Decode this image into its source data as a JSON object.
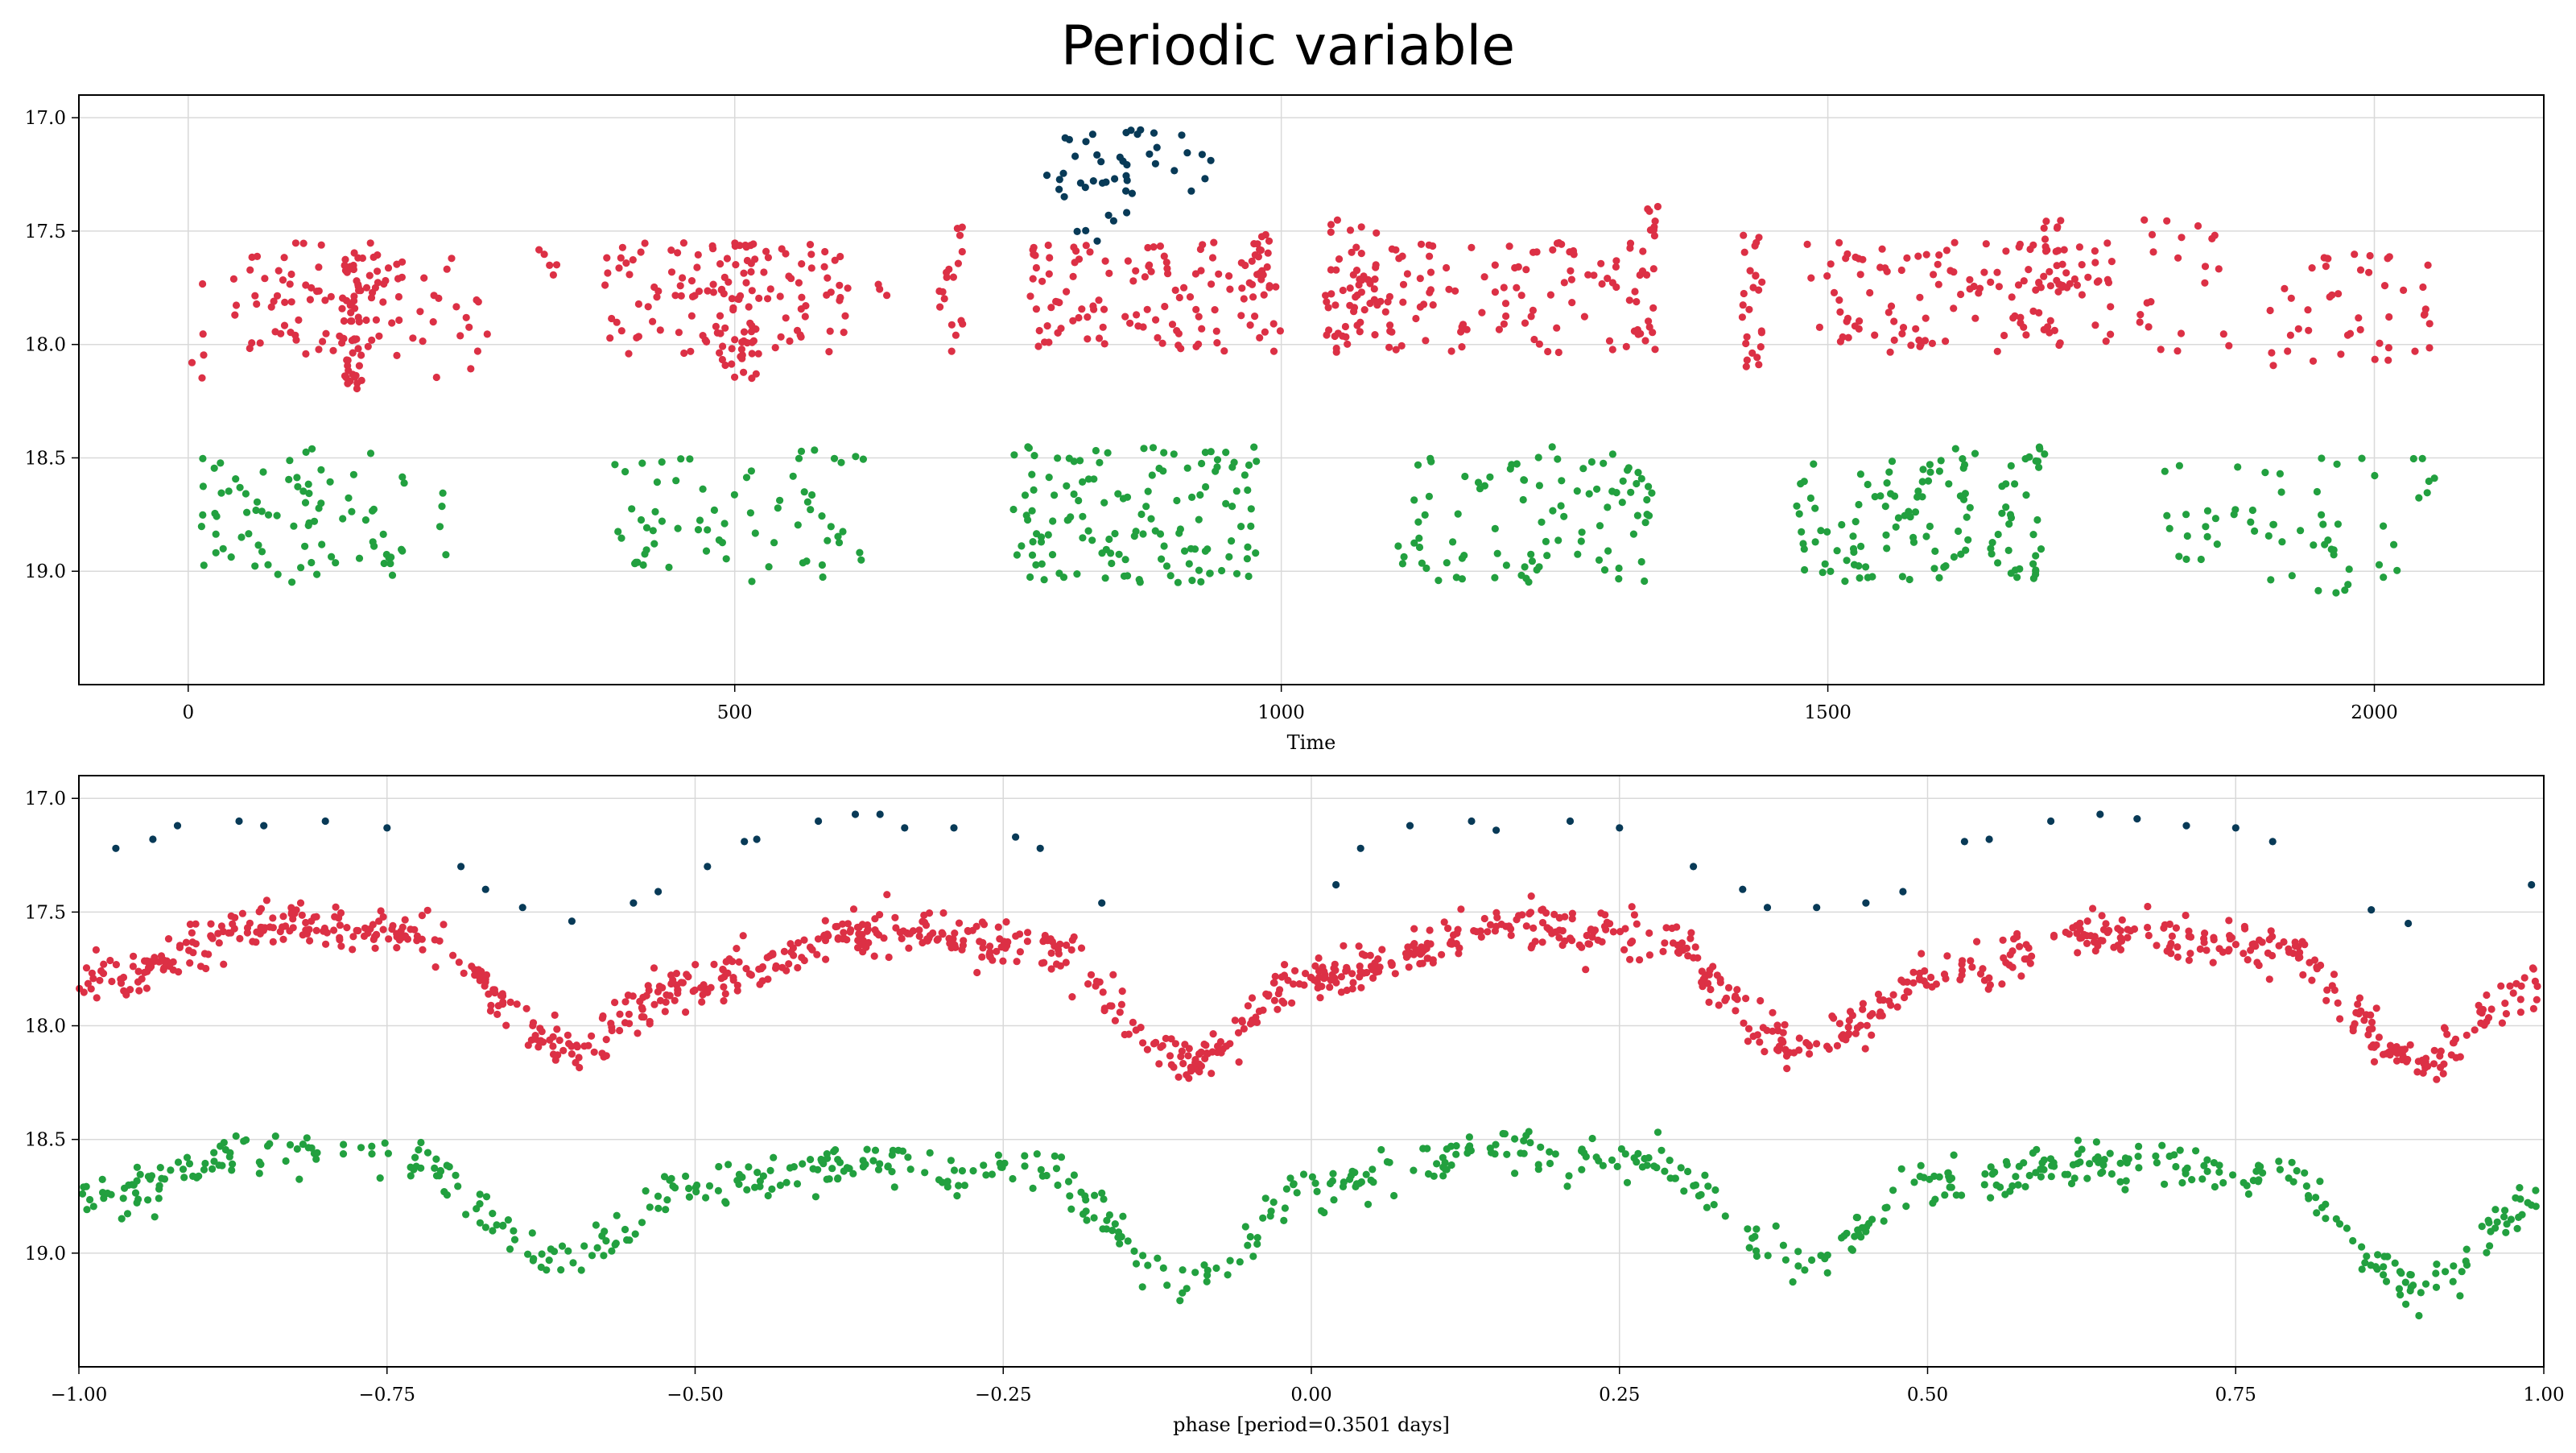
{
  "title": "Periodic variable",
  "colors": {
    "g": "#22a03f",
    "r": "#dc3045",
    "i": "#083a57",
    "grid": "#d9d9d9"
  },
  "chart_data": [
    {
      "type": "scatter",
      "xlabel": "Time",
      "ylabel": "",
      "xlim": [
        -100,
        2155
      ],
      "ylim": [
        19.5,
        16.9
      ],
      "y_inverted": true,
      "grid": true,
      "xticks": [
        0,
        500,
        1000,
        1500,
        2000
      ],
      "yticks": [
        17.0,
        17.5,
        18.0,
        18.5,
        19.0
      ],
      "series": [
        {
          "color_key": "r",
          "clusters": [
            [
              0,
              20,
              17.85,
              0.3,
              5
            ],
            [
              40,
              230,
              17.8,
              0.25,
              90
            ],
            [
              140,
              160,
              17.9,
              0.3,
              45
            ],
            [
              225,
              275,
              17.85,
              0.3,
              12
            ],
            [
              320,
              340,
              17.65,
              0.1,
              5
            ],
            [
              380,
              605,
              17.8,
              0.25,
              110
            ],
            [
              480,
              520,
              17.85,
              0.3,
              45
            ],
            [
              630,
              640,
              17.7,
              0.1,
              3
            ],
            [
              685,
              710,
              17.75,
              0.3,
              18
            ],
            [
              770,
              1000,
              17.8,
              0.25,
              120
            ],
            [
              970,
              990,
              17.65,
              0.15,
              15
            ],
            [
              1040,
              1090,
              17.75,
              0.3,
              55
            ],
            [
              1090,
              1350,
              17.8,
              0.25,
              110
            ],
            [
              1335,
              1350,
              17.5,
              0.15,
              8
            ],
            [
              1420,
              1440,
              17.8,
              0.3,
              25
            ],
            [
              1480,
              1760,
              17.8,
              0.25,
              125
            ],
            [
              1690,
              1720,
              17.6,
              0.15,
              20
            ],
            [
              1780,
              1870,
              17.75,
              0.3,
              22
            ],
            [
              1900,
              2055,
              17.85,
              0.25,
              45
            ]
          ]
        },
        {
          "color_key": "g",
          "clusters": [
            [
              10,
              200,
              18.75,
              0.3,
              80
            ],
            [
              230,
              240,
              18.75,
              0.2,
              4
            ],
            [
              390,
              620,
              18.75,
              0.3,
              70
            ],
            [
              755,
              980,
              18.75,
              0.3,
              135
            ],
            [
              1105,
              1340,
              18.75,
              0.3,
              95
            ],
            [
              1470,
              1700,
              18.75,
              0.3,
              125
            ],
            [
              1805,
              2055,
              18.8,
              0.3,
              60
            ]
          ]
        },
        {
          "color_key": "i",
          "clusters": [
            [
              770,
              940,
              17.2,
              0.15,
              40
            ],
            [
              790,
              860,
              17.45,
              0.1,
              6
            ]
          ]
        }
      ]
    },
    {
      "type": "scatter",
      "xlabel": "phase [period=0.3501 days]",
      "ylabel": "",
      "xlim": [
        -1.0,
        1.0
      ],
      "ylim": [
        19.5,
        16.9
      ],
      "y_inverted": true,
      "grid": true,
      "xticks": [
        -1.0,
        -0.75,
        -0.5,
        -0.25,
        0.0,
        0.25,
        0.5,
        0.75,
        1.0
      ],
      "xtick_labels": [
        "−1.00",
        "−0.75",
        "−0.50",
        "−0.25",
        "0.00",
        "0.25",
        "0.50",
        "0.75",
        "1.00"
      ],
      "yticks": [
        17.0,
        17.5,
        18.0,
        18.5,
        19.0
      ],
      "phase_centers": [
        -1.0,
        -0.83,
        -0.73,
        -0.6,
        -0.5,
        -0.35,
        -0.22,
        -0.1,
        0.0,
        0.17,
        0.27,
        0.4,
        0.5,
        0.65,
        0.78,
        0.9,
        1.0
      ],
      "series": [
        {
          "color_key": "r",
          "count": 1200,
          "scatter": 0.05,
          "profile": [
            17.8,
            17.55,
            17.6,
            18.1,
            17.8,
            17.58,
            17.65,
            18.15,
            17.8,
            17.55,
            17.6,
            18.1,
            17.8,
            17.58,
            17.65,
            18.15,
            17.8
          ]
        },
        {
          "color_key": "g",
          "count": 700,
          "scatter": 0.05,
          "profile": [
            18.75,
            18.55,
            18.6,
            19.05,
            18.7,
            18.6,
            18.65,
            19.15,
            18.7,
            18.55,
            18.6,
            19.05,
            18.7,
            18.6,
            18.65,
            19.15,
            18.75
          ]
        },
        {
          "color_key": "i",
          "points": [
            [
              -0.97,
              17.22
            ],
            [
              -0.94,
              17.18
            ],
            [
              -0.92,
              17.12
            ],
            [
              -0.87,
              17.1
            ],
            [
              -0.85,
              17.12
            ],
            [
              -0.8,
              17.1
            ],
            [
              -0.75,
              17.13
            ],
            [
              -0.69,
              17.3
            ],
            [
              -0.67,
              17.4
            ],
            [
              -0.64,
              17.48
            ],
            [
              -0.6,
              17.54
            ],
            [
              -0.55,
              17.46
            ],
            [
              -0.53,
              17.41
            ],
            [
              -0.49,
              17.3
            ],
            [
              -0.46,
              17.19
            ],
            [
              -0.45,
              17.18
            ],
            [
              -0.4,
              17.1
            ],
            [
              -0.37,
              17.07
            ],
            [
              -0.35,
              17.07
            ],
            [
              -0.33,
              17.13
            ],
            [
              -0.29,
              17.13
            ],
            [
              -0.24,
              17.17
            ],
            [
              -0.22,
              17.22
            ],
            [
              -0.17,
              17.46
            ],
            [
              0.02,
              17.38
            ],
            [
              0.04,
              17.22
            ],
            [
              0.08,
              17.12
            ],
            [
              0.13,
              17.1
            ],
            [
              0.15,
              17.14
            ],
            [
              0.21,
              17.1
            ],
            [
              0.25,
              17.13
            ],
            [
              0.31,
              17.3
            ],
            [
              0.35,
              17.4
            ],
            [
              0.37,
              17.48
            ],
            [
              0.41,
              17.48
            ],
            [
              0.45,
              17.46
            ],
            [
              0.48,
              17.41
            ],
            [
              0.53,
              17.19
            ],
            [
              0.55,
              17.18
            ],
            [
              0.6,
              17.1
            ],
            [
              0.64,
              17.07
            ],
            [
              0.67,
              17.09
            ],
            [
              0.71,
              17.12
            ],
            [
              0.75,
              17.13
            ],
            [
              0.78,
              17.19
            ],
            [
              0.86,
              17.49
            ],
            [
              0.89,
              17.55
            ],
            [
              0.99,
              17.38
            ]
          ]
        }
      ]
    }
  ]
}
